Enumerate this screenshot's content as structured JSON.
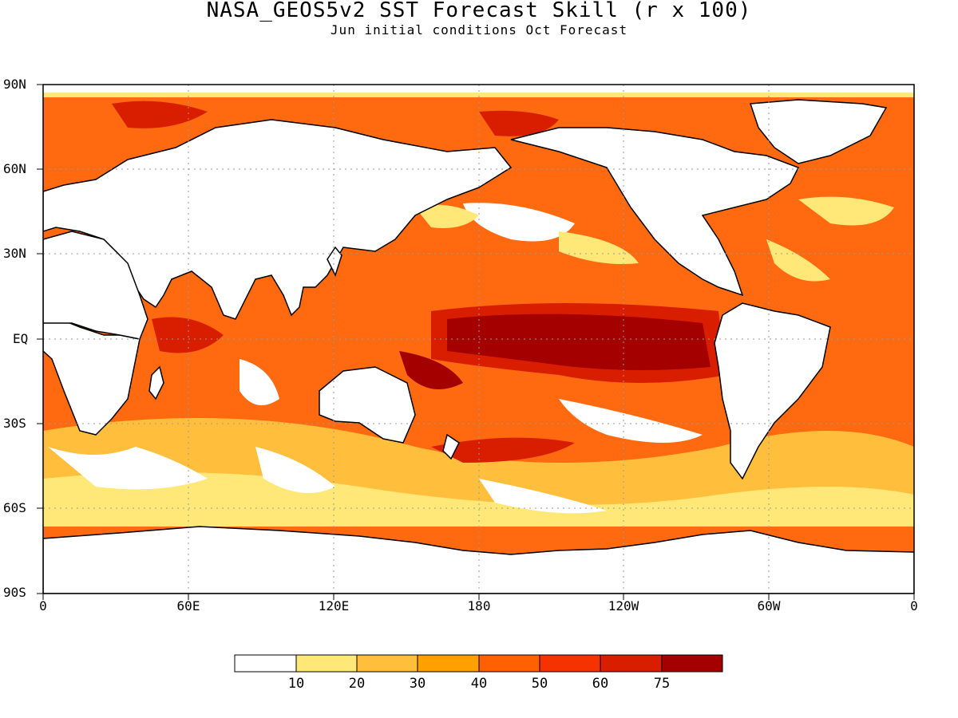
{
  "title": "NASA_GEOS5v2 SST Forecast Skill (r x 100)",
  "subtitle": "Jun initial conditions  Oct Forecast",
  "map": {
    "projection": "cylindrical equidistant",
    "lon_range": [
      0,
      360
    ],
    "lat_range": [
      -90,
      90
    ],
    "grid": true,
    "lat_labels": [
      "90N",
      "60N",
      "30N",
      "EQ",
      "30S",
      "60S",
      "90S"
    ],
    "lon_labels": [
      "0",
      "60E",
      "120E",
      "180",
      "120W",
      "60W",
      "0"
    ]
  },
  "colorbar": {
    "labels": [
      "10",
      "20",
      "30",
      "40",
      "50",
      "60",
      "75"
    ],
    "colors": [
      "#ffffff",
      "#ffe878",
      "#ffbf3c",
      "#ffa000",
      "#ff6000",
      "#f53200",
      "#d91e00",
      "#a50000"
    ]
  }
}
